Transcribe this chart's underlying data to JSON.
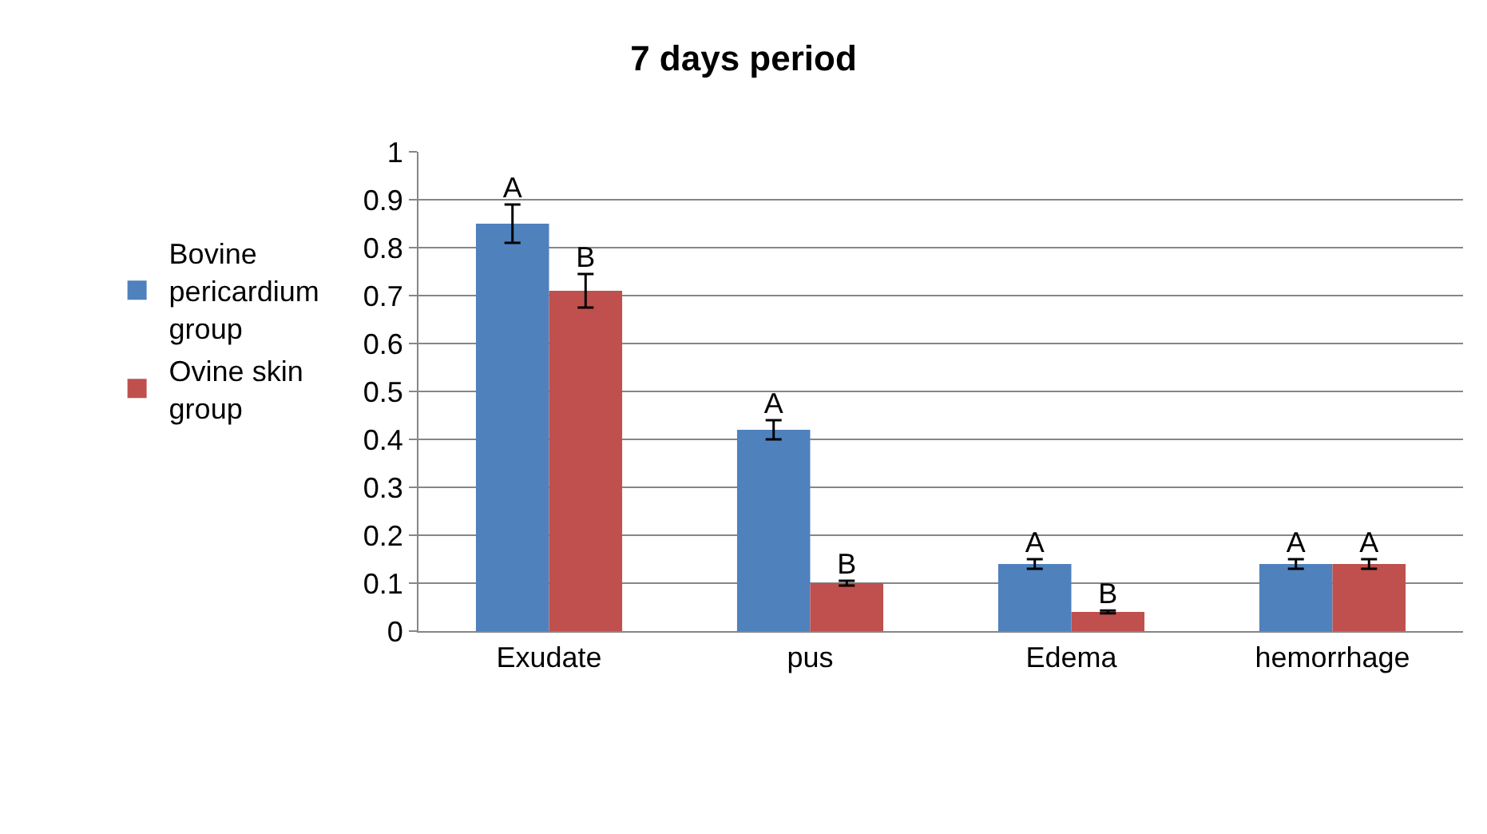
{
  "chart_data": {
    "type": "bar",
    "title": "7 days period",
    "categories": [
      "Exudate",
      "pus",
      "Edema",
      "hemorrhage"
    ],
    "series": [
      {
        "name": "Bovine pericardium group",
        "color": "#4f81bd",
        "values": [
          0.85,
          0.42,
          0.14,
          0.14
        ],
        "errors": [
          0.04,
          0.02,
          0.01,
          0.01
        ],
        "value_labels": [
          "A",
          "A",
          "A",
          "A"
        ]
      },
      {
        "name": "Ovine skin group",
        "color": "#c0504d",
        "values": [
          0.71,
          0.1,
          0.04,
          0.14
        ],
        "errors": [
          0.035,
          0.005,
          0.003,
          0.01
        ],
        "value_labels": [
          "B",
          "B",
          "B",
          "A"
        ]
      }
    ],
    "ylim": [
      0,
      1
    ],
    "yticks": [
      0,
      0.1,
      0.2,
      0.3,
      0.4,
      0.5,
      0.6,
      0.7,
      0.8,
      0.9,
      1
    ],
    "grid": "y",
    "legend": "left"
  }
}
